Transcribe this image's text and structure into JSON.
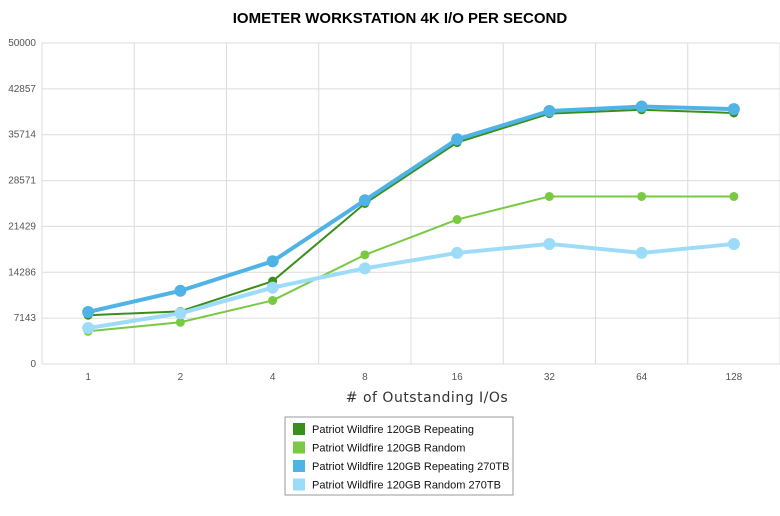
{
  "chart_data": {
    "type": "line",
    "title": "IOMETER WORKSTATION 4K I/O PER SECOND",
    "xlabel": "# of Outstanding I/Os",
    "ylabel": "",
    "categories": [
      "1",
      "2",
      "4",
      "8",
      "16",
      "32",
      "64",
      "128"
    ],
    "yticks": [
      "0",
      "7143",
      "14286",
      "21429",
      "28571",
      "35714",
      "42857",
      "50000"
    ],
    "ylim": [
      0,
      50000
    ],
    "grid": true,
    "legend_position": "bottom-center",
    "series": [
      {
        "name": "Patriot Wildfire 120GB Repeating",
        "color": "#3a8f1c",
        "values": [
          7600,
          8200,
          12900,
          25000,
          34500,
          39000,
          39600,
          39100
        ]
      },
      {
        "name": "Patriot Wildfire 120GB Random",
        "color": "#7ac943",
        "values": [
          5100,
          6500,
          9900,
          17000,
          22500,
          26100,
          26100,
          26100
        ]
      },
      {
        "name": "Patriot Wildfire 120GB Repeating 270TB",
        "color": "#4fb3e6",
        "values": [
          8100,
          11400,
          16000,
          25500,
          35000,
          39400,
          40100,
          39700
        ]
      },
      {
        "name": "Patriot Wildfire 120GB Random 270TB",
        "color": "#9ddcf8",
        "values": [
          5600,
          7900,
          11900,
          14900,
          17300,
          18700,
          17300,
          18700
        ]
      }
    ]
  }
}
